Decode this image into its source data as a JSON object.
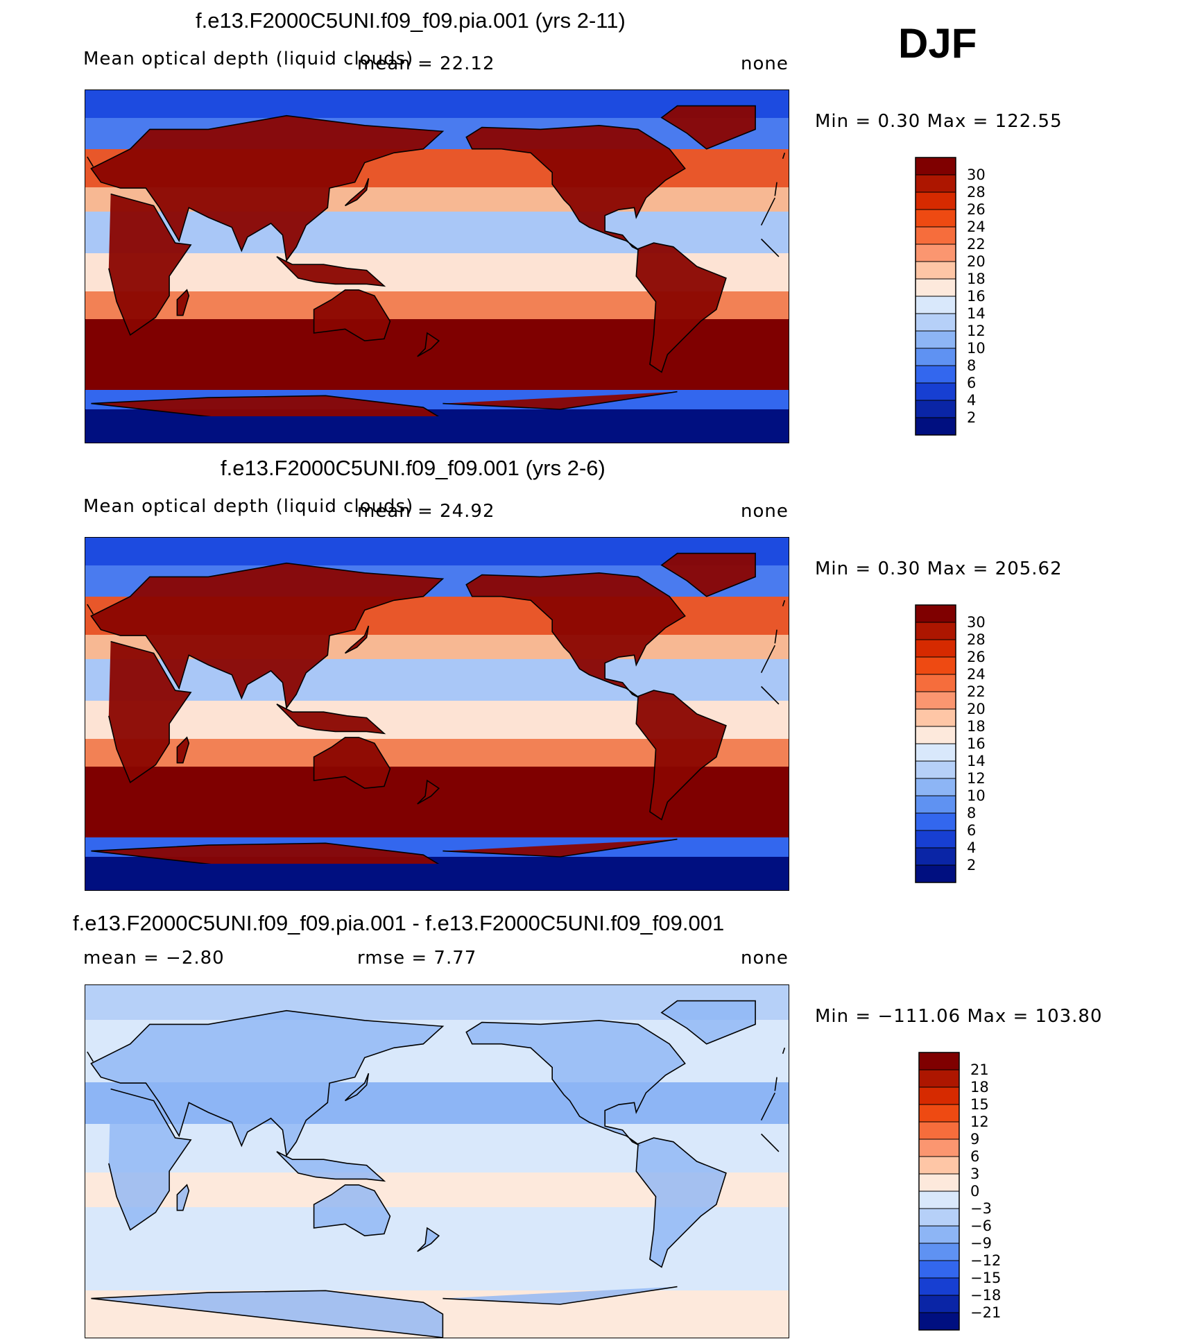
{
  "season": "DJF",
  "panels": [
    {
      "title": "f.e13.F2000C5UNI.f09_f09.pia.001 (yrs 2-11)",
      "left_label": "Mean optical depth (liquid clouds)",
      "center_label": "mean =  22.12",
      "right_label": "none",
      "minmax": "Min =   0.30 Max = 122.55",
      "kind": "abs",
      "colorbar_labels": [
        "30",
        "28",
        "26",
        "24",
        "22",
        "20",
        "18",
        "16",
        "14",
        "12",
        "10",
        "8",
        "6",
        "4",
        "2"
      ],
      "colorbar_colors": [
        "#7f0000",
        "#ad1600",
        "#d62a00",
        "#ee4a12",
        "#f66d3c",
        "#fb9670",
        "#fec6a6",
        "#fde9dc",
        "#d9e8fb",
        "#b6d0f8",
        "#8db5f5",
        "#5f92f2",
        "#3367ee",
        "#173fd2",
        "#0a25a6",
        "#000f80"
      ]
    },
    {
      "title": "f.e13.F2000C5UNI.f09_f09.001 (yrs 2-6)",
      "left_label": "Mean optical depth (liquid clouds)",
      "center_label": "mean =  24.92",
      "right_label": "none",
      "minmax": "Min =   0.30 Max = 205.62",
      "kind": "abs",
      "colorbar_labels": [
        "30",
        "28",
        "26",
        "24",
        "22",
        "20",
        "18",
        "16",
        "14",
        "12",
        "10",
        "8",
        "6",
        "4",
        "2"
      ],
      "colorbar_colors": [
        "#7f0000",
        "#ad1600",
        "#d62a00",
        "#ee4a12",
        "#f66d3c",
        "#fb9670",
        "#fec6a6",
        "#fde9dc",
        "#d9e8fb",
        "#b6d0f8",
        "#8db5f5",
        "#5f92f2",
        "#3367ee",
        "#173fd2",
        "#0a25a6",
        "#000f80"
      ]
    },
    {
      "title": "f.e13.F2000C5UNI.f09_f09.pia.001 - f.e13.F2000C5UNI.f09_f09.001",
      "left_label": "mean =   −2.80",
      "center_label": "rmse =    7.77",
      "right_label": "none",
      "minmax": "Min = −111.06 Max = 103.80",
      "kind": "diff",
      "colorbar_labels": [
        "21",
        "18",
        "15",
        "12",
        "9",
        "6",
        "3",
        "0",
        "−3",
        "−6",
        "−9",
        "−12",
        "−15",
        "−18",
        "−21"
      ],
      "colorbar_colors": [
        "#7f0000",
        "#ad1600",
        "#d62a00",
        "#ee4a12",
        "#f66d3c",
        "#fb9670",
        "#fec6a6",
        "#fde9dc",
        "#d9e8fb",
        "#b6d0f8",
        "#8db5f5",
        "#5f92f2",
        "#3367ee",
        "#173fd2",
        "#0a25a6",
        "#000f80"
      ]
    }
  ]
}
